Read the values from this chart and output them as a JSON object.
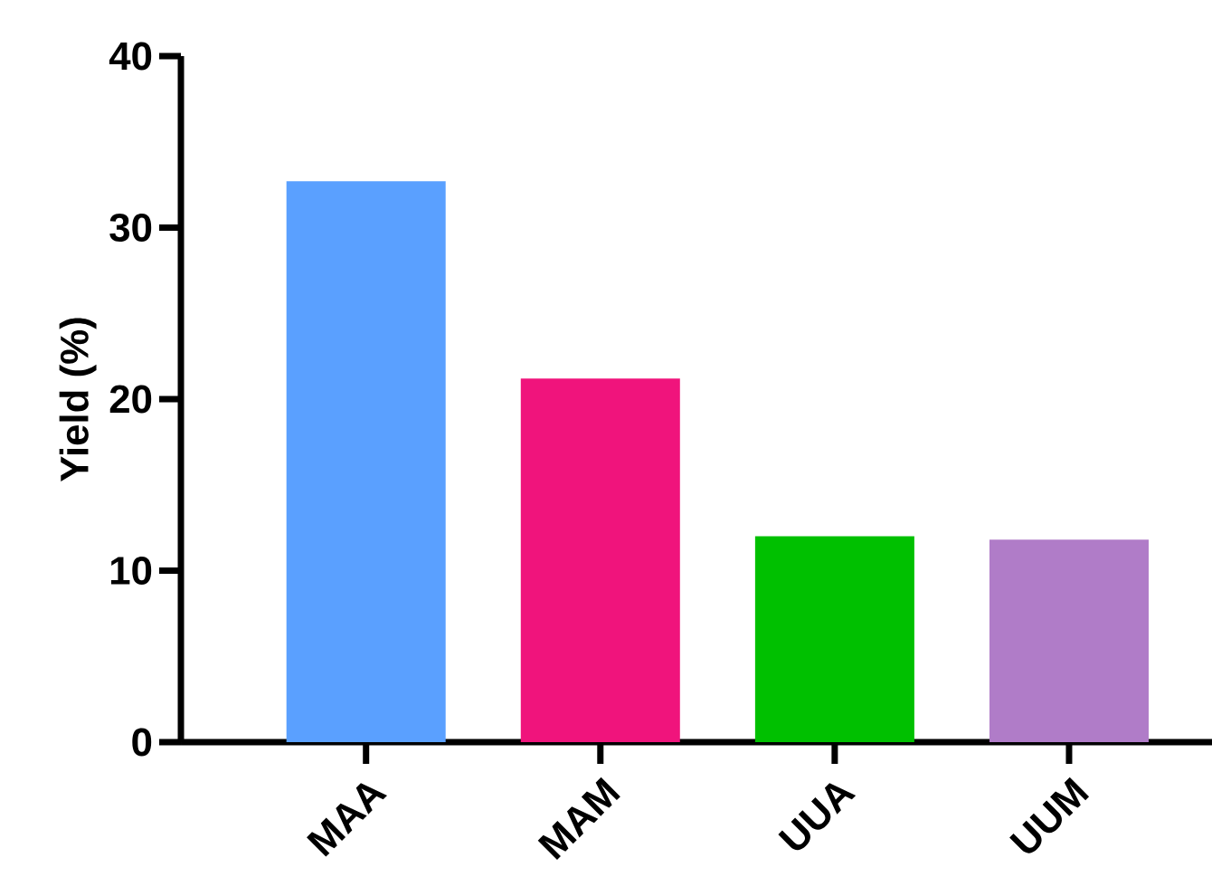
{
  "chart_data": {
    "type": "bar",
    "ylabel": "Yield (%)",
    "categories": [
      "MAA",
      "MAM",
      "UUA",
      "UUM"
    ],
    "values": [
      32.7,
      21.2,
      12.0,
      11.8
    ],
    "colors": [
      "#5aa0ff",
      "#f0147c",
      "#00c000",
      "#b07cc8"
    ],
    "ylim": [
      0,
      40
    ],
    "yticks": [
      0,
      10,
      20,
      30,
      40
    ],
    "grid": false
  }
}
